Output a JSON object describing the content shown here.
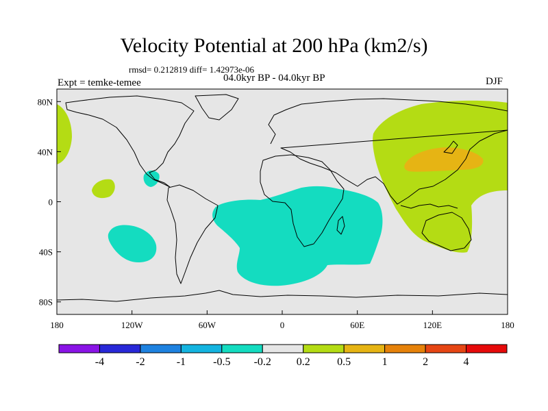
{
  "header": {
    "title": "Velocity Potential at 200 hPa (km2/s)",
    "stats": "rmsd= 0.212819 diff= 1.42973e-06",
    "period": "04.0kyr BP - 04.0kyr BP",
    "experiment": "Expt = temke-temee",
    "season": "DJF"
  },
  "chart_data": {
    "type": "heatmap",
    "title": "Velocity Potential at 200 hPa (km2/s)",
    "map_projection": "cylindrical equidistant",
    "xlim": [
      -180,
      180
    ],
    "ylim": [
      -90,
      90
    ],
    "x_ticks": [
      {
        "value": -180,
        "label": "180"
      },
      {
        "value": -120,
        "label": "120W"
      },
      {
        "value": -60,
        "label": "60W"
      },
      {
        "value": 0,
        "label": "0"
      },
      {
        "value": 60,
        "label": "60E"
      },
      {
        "value": 120,
        "label": "120E"
      },
      {
        "value": 180,
        "label": "180"
      }
    ],
    "y_ticks": [
      {
        "value": 80,
        "label": "80N"
      },
      {
        "value": 40,
        "label": "40N"
      },
      {
        "value": 0,
        "label": "0"
      },
      {
        "value": -40,
        "label": "40S"
      },
      {
        "value": -80,
        "label": "80S"
      }
    ],
    "colorbar": {
      "levels": [
        "-4",
        "-2",
        "-1",
        "-0.5",
        "-0.2",
        "0.2",
        "0.5",
        "1",
        "2",
        "4"
      ],
      "colors": [
        "#8a14e6",
        "#2828d8",
        "#1e82e0",
        "#14b4e0",
        "#14dcc0",
        "#e6e6e6",
        "#b4dc14",
        "#e6b414",
        "#e6820a",
        "#e64614",
        "#e60a0a"
      ]
    },
    "background_color": "#e6e6e6",
    "regions": [
      {
        "name": "positive-west-pacific-asia",
        "level": "0.2 to 0.5",
        "color": "#b4dc14"
      },
      {
        "name": "positive-east-asia-core",
        "level": "0.5 to 1",
        "color": "#e6b414"
      },
      {
        "name": "positive-north-pacific-dateline",
        "level": "0.2 to 0.5",
        "color": "#b4dc14"
      },
      {
        "name": "positive-east-pacific-patch",
        "level": "0.2 to 0.5",
        "color": "#b4dc14"
      },
      {
        "name": "negative-south-atlantic-africa",
        "level": "-0.5 to -0.2",
        "color": "#14dcc0"
      },
      {
        "name": "negative-south-east-pacific",
        "level": "-0.5 to -0.2",
        "color": "#14dcc0"
      },
      {
        "name": "negative-central-america",
        "level": "-0.5 to -0.2",
        "color": "#14dcc0"
      }
    ]
  }
}
